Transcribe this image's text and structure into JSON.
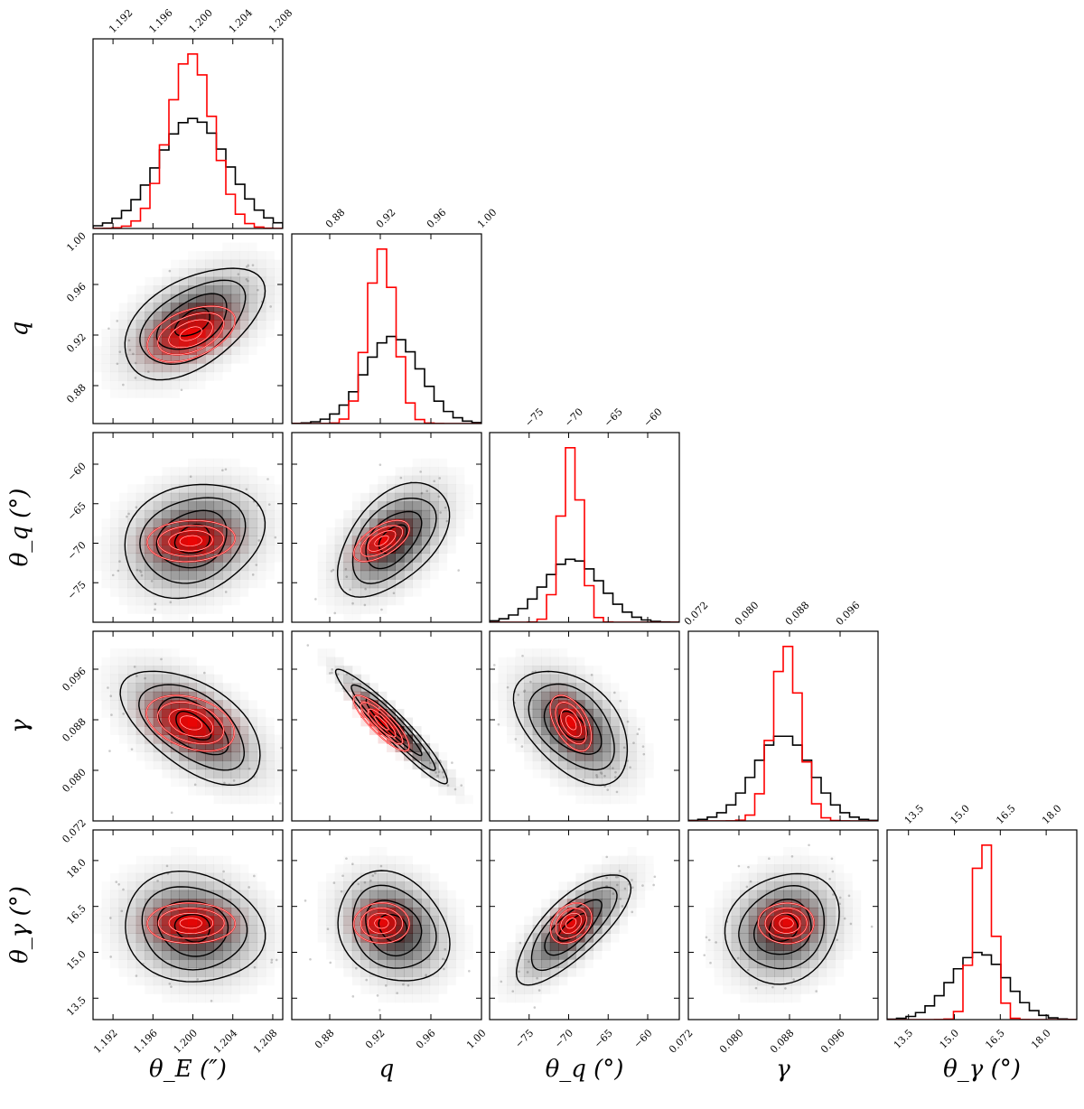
{
  "chart_data": {
    "type": "corner",
    "parameters": [
      {
        "label": "θ_E (″)",
        "ticks": [
          "1.192",
          "1.196",
          "1.200",
          "1.204",
          "1.208"
        ],
        "range": [
          1.19,
          1.209
        ]
      },
      {
        "label": "q",
        "ticks": [
          "0.88",
          "0.92",
          "0.96",
          "1.00"
        ],
        "range": [
          0.85,
          1.0
        ]
      },
      {
        "label": "θ_q (°)",
        "ticks": [
          "−75",
          "−70",
          "−65",
          "−60"
        ],
        "range": [
          -80,
          -56
        ]
      },
      {
        "label": "γ",
        "ticks": [
          "0.072",
          "0.080",
          "0.088",
          "0.096"
        ],
        "range": [
          0.072,
          0.102
        ]
      },
      {
        "label": "θ_γ (°)",
        "ticks": [
          "13.5",
          "15.0",
          "16.5",
          "18.0"
        ],
        "range": [
          12.8,
          19.0
        ]
      }
    ],
    "posteriors": [
      {
        "color": "#000000",
        "mean": [
          1.2,
          0.93,
          -69.5,
          0.087,
          15.8
        ],
        "sd": [
          0.0035,
          0.022,
          3.6,
          0.0045,
          0.9
        ],
        "correlations": [
          [
            0,
            1,
            0.5
          ],
          [
            0,
            2,
            0.2
          ],
          [
            0,
            3,
            -0.55
          ],
          [
            0,
            4,
            -0.1
          ],
          [
            1,
            2,
            0.5
          ],
          [
            1,
            3,
            -0.95
          ],
          [
            1,
            4,
            -0.2
          ],
          [
            2,
            3,
            -0.45
          ],
          [
            2,
            4,
            0.75
          ],
          [
            3,
            4,
            0.15
          ]
        ]
      },
      {
        "color": "#ff0000",
        "mean": [
          1.1998,
          0.921,
          -69.7,
          0.0875,
          15.95
        ],
        "sd": [
          0.0022,
          0.011,
          1.3,
          0.0022,
          0.33
        ],
        "correlations": [
          [
            0,
            1,
            0.45
          ],
          [
            0,
            2,
            0.1
          ],
          [
            0,
            3,
            -0.35
          ],
          [
            0,
            4,
            0.0
          ],
          [
            1,
            2,
            0.6
          ],
          [
            1,
            3,
            -0.85
          ],
          [
            1,
            4,
            0.0
          ],
          [
            2,
            3,
            -0.5
          ],
          [
            2,
            4,
            0.3
          ],
          [
            3,
            4,
            0.0
          ]
        ]
      }
    ],
    "contour_sigmas": [
      0.5,
      1.0,
      1.5,
      2.0
    ],
    "histogram_bins": 20,
    "grid": false
  },
  "colors": {
    "primary": "#000000",
    "secondary": "#ff0000",
    "shade": "#000000",
    "scatter": "#cccccc"
  }
}
